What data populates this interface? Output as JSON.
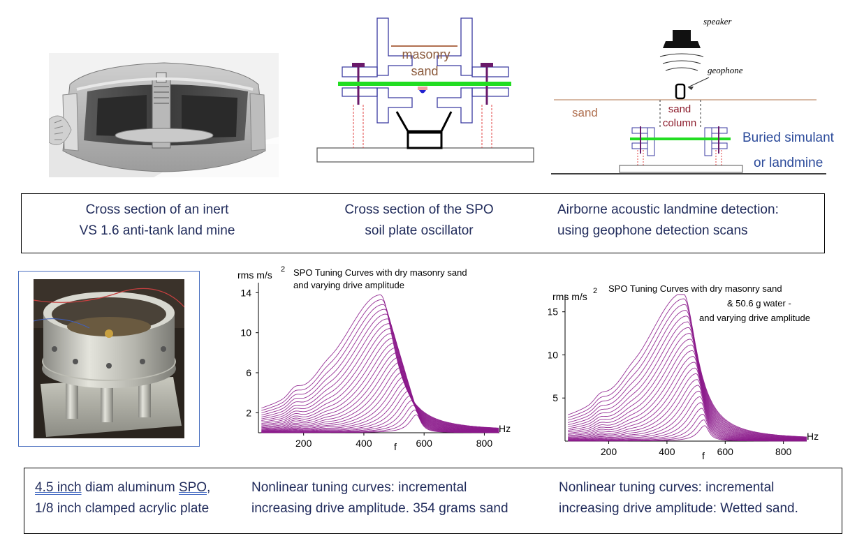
{
  "top_captions": {
    "mine": {
      "line1": "Cross section of an inert",
      "line2": "VS 1.6 anti-tank land mine"
    },
    "spo": {
      "line1": "Cross section of the SPO",
      "line2": "soil plate oscillator"
    },
    "acoustic": {
      "line1": "Airborne acoustic landmine detection:",
      "line2": "using geophone detection scans"
    }
  },
  "spo_diagram": {
    "label_masonry": "masonry",
    "label_sand": "sand"
  },
  "acoustic_diagram": {
    "label_speaker": "speaker",
    "label_geophone": "geophone",
    "label_sand": "sand",
    "label_sand_column_1": "sand",
    "label_sand_column_2": "column",
    "label_buried_1": "Buried simulant",
    "label_buried_2": "or landmine"
  },
  "bottom_captions": {
    "photo": {
      "line1_part1": "4.5 inch",
      "line1_part2": " diam aluminum ",
      "line1_part3": "SPO,",
      "line2": "1/8 inch clamped acrylic plate"
    },
    "chart1": {
      "line1": "Nonlinear tuning curves: incremental",
      "line2": "increasing drive amplitude. 354 grams sand"
    },
    "chart2": {
      "line1": "Nonlinear tuning curves: incremental",
      "line2": "increasing drive amplitude: Wetted sand."
    }
  },
  "colors": {
    "caption_text": "#1f2a5a",
    "curve": "#8b1a8b",
    "green_plate": "#22dd22",
    "frame_blue": "#3a3aa0",
    "sand_brown": "#b07050",
    "buried_blue": "#2b4a9a"
  },
  "chart_data": [
    {
      "type": "line",
      "title_line1": "SPO Tuning Curves with dry masonry sand",
      "title_line2": "and varying drive amplitude",
      "ylabel": "rms m/s",
      "ylabel_sup": "2",
      "xlabel": "f",
      "xunit": "Hz",
      "xlim": [
        50,
        850
      ],
      "ylim": [
        0,
        15
      ],
      "xticks": [
        200,
        400,
        600,
        800
      ],
      "yticks": [
        2,
        6,
        10,
        14
      ],
      "curve_count": 26,
      "peak_low": {
        "x": 575,
        "y": 1.8
      },
      "peak_high": {
        "x": 455,
        "y": 13.6
      }
    },
    {
      "type": "line",
      "title_line1": "SPO Tuning Curves with dry masonry sand",
      "title_line2": "& 50.6 g water -",
      "title_line3": "and varying drive amplitude",
      "ylabel": "rms m/s",
      "ylabel_sup": "2",
      "xlabel": "f",
      "xunit": "Hz",
      "xlim": [
        50,
        880
      ],
      "ylim": [
        0,
        17
      ],
      "xticks": [
        200,
        400,
        600,
        800
      ],
      "yticks": [
        5,
        10,
        15
      ],
      "curve_count": 24,
      "peak_low": {
        "x": 530,
        "y": 1.8
      },
      "peak_high": {
        "x": 455,
        "y": 17.0
      }
    }
  ]
}
